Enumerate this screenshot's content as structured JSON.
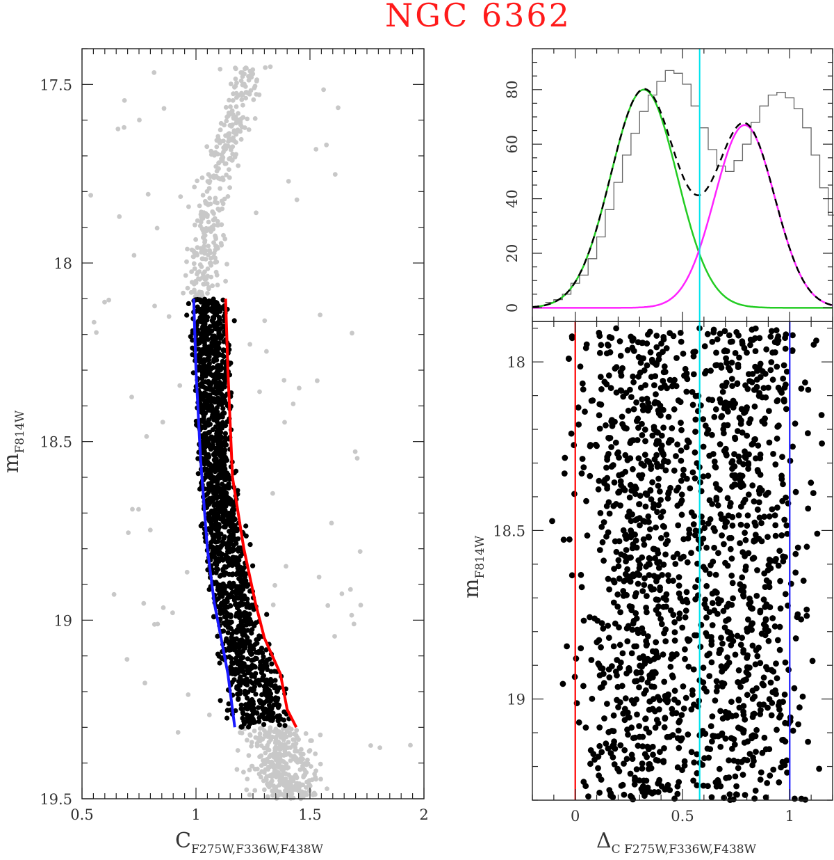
{
  "title": "NGC 6362",
  "colors": {
    "title": "#ff1a1a",
    "all_stars": "#c8c8c8",
    "selected_stars": "#000000",
    "red_fiducial": "#ff0000",
    "blue_fiducial": "#1a1aff",
    "green_gaussian": "#22cc22",
    "magenta_gaussian": "#ff22ff",
    "cyan_line": "#00e5ee",
    "histogram": "#666666",
    "total_fit": "#000000"
  },
  "chart_data": [
    {
      "id": "cmd",
      "type": "scatter",
      "xlabel": "C",
      "xlabel_sub": "F275W,F336W,F438W",
      "ylabel": "m",
      "ylabel_sub": "F814W",
      "xlim": [
        0.5,
        2.0
      ],
      "ylim": [
        19.5,
        17.4
      ],
      "y_inverted": true,
      "xticks": [
        0.5,
        1,
        1.5,
        2
      ],
      "xtick_labels": [
        "0.5",
        "1",
        "1.5",
        "2"
      ],
      "yticks": [
        17.5,
        18,
        18.5,
        19,
        19.5
      ],
      "ytick_labels": [
        "17.5",
        "18",
        "18.5",
        "19",
        "19.5"
      ],
      "series": [
        {
          "role": "all stars",
          "marker": "gray-dot",
          "note": "upper main sequence / turn-off, C≈1.0–1.4 at m=17.5–18.1; lower MS, C≈1.15–1.6 at m=19.3–19.5"
        },
        {
          "role": "selected stars",
          "marker": "black-dot",
          "mag_range": [
            18.1,
            19.3
          ]
        },
        {
          "role": "red fiducial line",
          "x": [
            1.13,
            1.14,
            1.16,
            1.21,
            1.26,
            1.3,
            1.37,
            1.4,
            1.44
          ],
          "y": [
            18.1,
            18.3,
            18.6,
            18.8,
            18.95,
            19.05,
            19.15,
            19.25,
            19.3
          ]
        },
        {
          "role": "blue fiducial line",
          "x": [
            0.99,
            1.0,
            1.02,
            1.05,
            1.08,
            1.11,
            1.14,
            1.17
          ],
          "y": [
            18.1,
            18.3,
            18.55,
            18.8,
            18.95,
            19.05,
            19.15,
            19.3
          ]
        }
      ]
    },
    {
      "id": "histogram",
      "type": "line",
      "xlim": [
        -0.2,
        1.2
      ],
      "ylim": [
        -5,
        95
      ],
      "yticks": [
        0,
        20,
        40,
        60,
        80
      ],
      "ytick_labels": [
        "0",
        "20",
        "40",
        "60",
        "80"
      ],
      "xticks": [
        0,
        0.5,
        1
      ],
      "hist_step": 0.04,
      "hist_counts": [
        2,
        3,
        5,
        9,
        12,
        18,
        26,
        36,
        46,
        56,
        64,
        72,
        78,
        83,
        87,
        86,
        82,
        74,
        66,
        58,
        52,
        50,
        54,
        60,
        68,
        74,
        78,
        79,
        77,
        73,
        66,
        56,
        44,
        34,
        24,
        16
      ],
      "series": [
        {
          "role": "gaussian 1",
          "color_key": "green_gaussian",
          "amplitude": 80,
          "mean": 0.32,
          "sigma": 0.155
        },
        {
          "role": "gaussian 2",
          "color_key": "magenta_gaussian",
          "amplitude": 67,
          "mean": 0.79,
          "sigma": 0.14
        },
        {
          "role": "sum of gaussians",
          "color_key": "total_fit",
          "dashed": true
        }
      ],
      "vline": 0.58
    },
    {
      "id": "chromosome-map",
      "type": "scatter",
      "xlabel": "Δ",
      "xlabel_sub": "C F275W,F336W,F438W",
      "ylabel": "m",
      "ylabel_sub": "F814W",
      "xlim": [
        -0.2,
        1.2
      ],
      "ylim": [
        19.3,
        17.88
      ],
      "y_inverted": true,
      "xticks": [
        0,
        0.5,
        1
      ],
      "xtick_labels": [
        "0",
        "0.5",
        "1"
      ],
      "yticks": [
        18,
        18.5,
        19
      ],
      "ytick_labels": [
        "18",
        "18.5",
        "19"
      ],
      "vlines": [
        {
          "x": 0,
          "color_key": "red_fiducial"
        },
        {
          "x": 0.58,
          "color_key": "cyan_line"
        },
        {
          "x": 1,
          "color_key": "blue_fiducial"
        }
      ]
    }
  ]
}
